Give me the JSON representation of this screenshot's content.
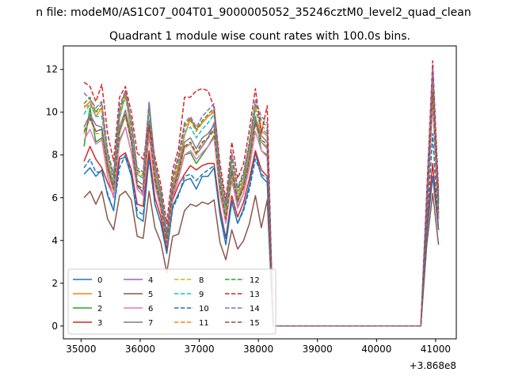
{
  "figure": {
    "suptitle": "n file: modeM0/AS1C07_004T01_9000005052_35246cztM0_level2_quad_clean",
    "title": "Quadrant 1 module wise count rates with 100.0s bins."
  },
  "chart_data": {
    "type": "line",
    "x_offset_label": "+3.868e8",
    "xlim": [
      34700,
      41350
    ],
    "ylim": [
      -0.6,
      13.1
    ],
    "xticks": [
      35000,
      36000,
      37000,
      38000,
      39000,
      40000,
      41000
    ],
    "yticks": [
      0,
      2,
      4,
      6,
      8,
      10,
      12
    ],
    "grid": false,
    "legend": {
      "placement": "lower-left",
      "columns": 4
    },
    "x": [
      35050,
      35150,
      35250,
      35350,
      35450,
      35550,
      35650,
      35750,
      35850,
      35950,
      36050,
      36150,
      36250,
      36350,
      36450,
      36550,
      36650,
      36750,
      36850,
      36950,
      37050,
      37150,
      37250,
      37350,
      37450,
      37550,
      37650,
      37750,
      37850,
      37950,
      38050,
      38150,
      38250,
      38350,
      38450,
      38550,
      38650,
      38750,
      38850,
      38950,
      39050,
      39150,
      39250,
      39350,
      39450,
      39550,
      39650,
      39750,
      39850,
      39950,
      40050,
      40150,
      40250,
      40350,
      40450,
      40550,
      40650,
      40750,
      40850,
      40950,
      41050
    ],
    "series": [
      {
        "name": "0",
        "color": "#1f77b4",
        "dash": "solid",
        "values": [
          7.1,
          7.4,
          7.0,
          7.3,
          6.1,
          5.4,
          7.8,
          7.9,
          7.0,
          5.1,
          4.9,
          7.9,
          5.7,
          4.8,
          3.4,
          5.6,
          6.2,
          6.8,
          6.9,
          6.4,
          7.0,
          7.0,
          7.4,
          5.2,
          3.8,
          5.8,
          4.8,
          5.5,
          6.6,
          8.1,
          7.0,
          6.7,
          0,
          0,
          0,
          0,
          0,
          0,
          0,
          0,
          0,
          0,
          0,
          0,
          0,
          0,
          0,
          0,
          0,
          0,
          0,
          0,
          0,
          0,
          0,
          0,
          0,
          0,
          4.3,
          7.0,
          4.5
        ]
      },
      {
        "name": "1",
        "color": "#ff7f0e",
        "dash": "solid",
        "values": [
          10.2,
          10.5,
          9.8,
          10.2,
          7.7,
          6.6,
          9.7,
          10.9,
          8.9,
          7.1,
          6.9,
          9.5,
          7.3,
          6.0,
          4.1,
          6.6,
          7.5,
          8.9,
          9.7,
          9.2,
          9.5,
          9.8,
          10.0,
          6.9,
          5.4,
          7.5,
          6.0,
          6.8,
          8.2,
          9.7,
          9.1,
          8.9,
          0,
          0,
          0,
          0,
          0,
          0,
          0,
          0,
          0,
          0,
          0,
          0,
          0,
          0,
          0,
          0,
          0,
          0,
          0,
          0,
          0,
          0,
          0,
          0,
          0,
          0,
          5.7,
          11.5,
          5.7
        ]
      },
      {
        "name": "2",
        "color": "#2ca02c",
        "dash": "solid",
        "values": [
          8.4,
          10.2,
          8.6,
          8.8,
          7.0,
          6.0,
          8.7,
          9.3,
          8.1,
          6.6,
          6.2,
          8.9,
          6.7,
          5.5,
          4.1,
          6.0,
          7.0,
          8.0,
          8.1,
          7.6,
          8.0,
          8.4,
          8.9,
          6.2,
          4.9,
          6.8,
          5.6,
          6.2,
          7.6,
          9.8,
          8.2,
          8.0,
          0,
          0,
          0,
          0,
          0,
          0,
          0,
          0,
          0,
          0,
          0,
          0,
          0,
          0,
          0,
          0,
          0,
          0,
          0,
          0,
          0,
          0,
          0,
          0,
          0,
          0,
          5.0,
          10.7,
          5.0
        ]
      },
      {
        "name": "3",
        "color": "#d62728",
        "dash": "solid",
        "values": [
          7.7,
          8.4,
          7.8,
          7.4,
          6.7,
          6.1,
          7.9,
          8.1,
          7.3,
          5.7,
          5.6,
          8.2,
          6.0,
          5.1,
          3.6,
          5.9,
          6.6,
          7.1,
          7.5,
          7.3,
          7.5,
          7.6,
          7.6,
          5.5,
          4.1,
          6.1,
          5.1,
          5.8,
          6.9,
          8.2,
          7.3,
          7.0,
          0,
          0,
          0,
          0,
          0,
          0,
          0,
          0,
          0,
          0,
          0,
          0,
          0,
          0,
          0,
          0,
          0,
          0,
          0,
          0,
          0,
          0,
          0,
          0,
          0,
          0,
          4.5,
          7.6,
          4.5
        ]
      },
      {
        "name": "4",
        "color": "#9467bd",
        "dash": "solid",
        "values": [
          9.0,
          9.8,
          9.1,
          9.2,
          7.3,
          6.3,
          9.1,
          9.9,
          8.6,
          6.5,
          6.3,
          9.6,
          6.9,
          5.6,
          3.9,
          6.1,
          7.2,
          8.4,
          8.5,
          8.0,
          8.4,
          8.8,
          9.5,
          6.5,
          5.0,
          7.2,
          5.8,
          6.5,
          7.8,
          9.7,
          8.6,
          8.3,
          0,
          0,
          0,
          0,
          0,
          0,
          0,
          0,
          0,
          0,
          0,
          0,
          0,
          0,
          0,
          0,
          0,
          0,
          0,
          0,
          0,
          0,
          0,
          0,
          0,
          0,
          5.2,
          11.0,
          5.2
        ]
      },
      {
        "name": "5",
        "color": "#8c564b",
        "dash": "solid",
        "values": [
          6.0,
          6.3,
          5.7,
          6.3,
          5.0,
          4.5,
          6.1,
          6.3,
          5.9,
          4.2,
          4.1,
          6.3,
          4.6,
          3.9,
          2.5,
          4.2,
          4.3,
          5.4,
          5.7,
          5.6,
          5.8,
          5.7,
          5.9,
          3.9,
          3.1,
          4.5,
          3.6,
          4.0,
          4.8,
          6.1,
          4.6,
          5.9,
          0,
          0,
          0,
          0,
          0,
          0,
          0,
          0,
          0,
          0,
          0,
          0,
          0,
          0,
          0,
          0,
          0,
          0,
          0,
          0,
          0,
          0,
          0,
          0,
          0,
          0,
          3.8,
          6.2,
          3.8
        ]
      },
      {
        "name": "6",
        "color": "#e377c2",
        "dash": "solid",
        "values": [
          8.7,
          9.2,
          8.5,
          8.7,
          7.0,
          6.0,
          8.6,
          9.3,
          8.1,
          6.4,
          6.1,
          9.0,
          6.6,
          5.4,
          3.8,
          6.0,
          6.9,
          8.0,
          8.2,
          7.8,
          8.1,
          8.4,
          8.8,
          6.2,
          4.8,
          6.9,
          5.5,
          6.2,
          7.4,
          9.1,
          8.2,
          7.9,
          0,
          0,
          0,
          0,
          0,
          0,
          0,
          0,
          0,
          0,
          0,
          0,
          0,
          0,
          0,
          0,
          0,
          0,
          0,
          0,
          0,
          0,
          0,
          0,
          0,
          0,
          5.0,
          10.4,
          5.0
        ]
      },
      {
        "name": "7",
        "color": "#7f7f7f",
        "dash": "solid",
        "values": [
          9.3,
          9.9,
          9.4,
          9.3,
          7.5,
          6.5,
          9.3,
          10.1,
          8.8,
          6.8,
          6.6,
          9.6,
          7.0,
          5.8,
          4.0,
          6.4,
          7.3,
          8.6,
          8.8,
          8.3,
          8.8,
          9.0,
          9.4,
          6.6,
          5.1,
          7.3,
          5.9,
          6.6,
          7.9,
          9.6,
          8.9,
          8.6,
          0,
          0,
          0,
          0,
          0,
          0,
          0,
          0,
          0,
          0,
          0,
          0,
          0,
          0,
          0,
          0,
          0,
          0,
          0,
          0,
          0,
          0,
          0,
          0,
          0,
          0,
          5.4,
          11.0,
          5.4
        ]
      },
      {
        "name": "8",
        "color": "#bcbd22",
        "dash": "dashed",
        "values": [
          9.0,
          9.7,
          9.0,
          9.0,
          7.3,
          6.3,
          9.0,
          9.8,
          8.6,
          6.6,
          6.4,
          9.3,
          6.8,
          5.6,
          3.9,
          6.2,
          7.1,
          8.3,
          8.5,
          8.0,
          8.5,
          8.8,
          9.1,
          6.4,
          5.0,
          7.1,
          5.8,
          6.4,
          7.7,
          9.4,
          8.6,
          8.4,
          0,
          0,
          0,
          0,
          0,
          0,
          0,
          0,
          0,
          0,
          0,
          0,
          0,
          0,
          0,
          0,
          0,
          0,
          0,
          0,
          0,
          0,
          0,
          0,
          0,
          0,
          5.2,
          10.8,
          5.2
        ]
      },
      {
        "name": "9",
        "color": "#17becf",
        "dash": "dashed",
        "values": [
          9.9,
          10.4,
          9.8,
          9.8,
          7.9,
          6.8,
          9.8,
          10.7,
          9.2,
          7.1,
          6.9,
          10.1,
          7.3,
          6.0,
          4.2,
          6.7,
          7.7,
          9.1,
          9.3,
          8.8,
          9.2,
          9.5,
          9.9,
          6.9,
          5.4,
          7.7,
          6.2,
          6.9,
          8.3,
          10.1,
          9.2,
          9.0,
          0,
          0,
          0,
          0,
          0,
          0,
          0,
          0,
          0,
          0,
          0,
          0,
          0,
          0,
          0,
          0,
          0,
          0,
          0,
          0,
          0,
          0,
          0,
          0,
          0,
          0,
          5.7,
          11.7,
          5.7
        ]
      },
      {
        "name": "10",
        "color": "#1f77b4",
        "dash": "dashed",
        "values": [
          7.4,
          7.8,
          7.2,
          7.2,
          6.2,
          5.4,
          7.4,
          8.0,
          7.1,
          5.4,
          5.2,
          7.8,
          5.7,
          4.8,
          3.4,
          5.5,
          6.1,
          7.0,
          7.1,
          6.8,
          7.1,
          7.3,
          7.5,
          5.3,
          4.1,
          5.9,
          4.8,
          5.4,
          6.4,
          7.8,
          7.1,
          6.9,
          0,
          0,
          0,
          0,
          0,
          0,
          0,
          0,
          0,
          0,
          0,
          0,
          0,
          0,
          0,
          0,
          0,
          0,
          0,
          0,
          0,
          0,
          0,
          0,
          0,
          0,
          4.4,
          9.0,
          4.4
        ]
      },
      {
        "name": "11",
        "color": "#ff7f0e",
        "dash": "dashed",
        "values": [
          10.3,
          10.3,
          10.0,
          10.2,
          8.0,
          7.0,
          10.0,
          10.8,
          9.4,
          7.2,
          7.0,
          10.3,
          7.4,
          6.1,
          4.3,
          6.8,
          7.8,
          9.3,
          9.6,
          9.1,
          9.5,
          9.8,
          10.1,
          7.1,
          5.5,
          7.9,
          6.3,
          7.0,
          8.4,
          10.2,
          9.4,
          9.1,
          0,
          0,
          0,
          0,
          0,
          0,
          0,
          0,
          0,
          0,
          0,
          0,
          0,
          0,
          0,
          0,
          0,
          0,
          0,
          0,
          0,
          0,
          0,
          0,
          0,
          0,
          5.8,
          11.8,
          5.8
        ]
      },
      {
        "name": "12",
        "color": "#2ca02c",
        "dash": "dashed",
        "values": [
          10.4,
          10.7,
          10.0,
          10.4,
          8.1,
          7.0,
          10.1,
          11.0,
          9.5,
          7.3,
          7.1,
          10.4,
          7.6,
          6.2,
          4.3,
          6.9,
          7.9,
          9.4,
          9.7,
          9.2,
          9.6,
          9.9,
          10.2,
          7.2,
          5.6,
          8.0,
          6.4,
          7.1,
          8.5,
          10.4,
          9.6,
          9.3,
          0,
          0,
          0,
          0,
          0,
          0,
          0,
          0,
          0,
          0,
          0,
          0,
          0,
          0,
          0,
          0,
          0,
          0,
          0,
          0,
          0,
          0,
          0,
          0,
          0,
          0,
          5.9,
          12.0,
          5.9
        ]
      },
      {
        "name": "13",
        "color": "#d62728",
        "dash": "dashed",
        "values": [
          11.4,
          11.2,
          10.5,
          11.3,
          9.0,
          7.7,
          10.7,
          11.2,
          10.0,
          8.1,
          7.8,
          9.4,
          7.9,
          6.6,
          4.8,
          7.3,
          8.3,
          10.7,
          10.7,
          11.0,
          11.1,
          11.0,
          10.2,
          7.6,
          5.9,
          8.6,
          6.9,
          7.6,
          9.2,
          11.1,
          9.0,
          10.3,
          0,
          0,
          0,
          0,
          0,
          0,
          0,
          0,
          0,
          0,
          0,
          0,
          0,
          0,
          0,
          0,
          0,
          0,
          0,
          0,
          0,
          0,
          0,
          0,
          0,
          0,
          6.3,
          12.4,
          6.3
        ]
      },
      {
        "name": "14",
        "color": "#9467bd",
        "dash": "dashed",
        "values": [
          10.9,
          10.6,
          10.2,
          10.5,
          8.2,
          7.1,
          10.3,
          11.0,
          9.6,
          7.4,
          7.2,
          10.5,
          7.6,
          6.3,
          4.4,
          7.0,
          8.0,
          9.5,
          9.8,
          9.3,
          9.8,
          10.1,
          10.4,
          7.3,
          5.7,
          8.1,
          6.5,
          7.2,
          8.7,
          10.6,
          9.8,
          9.5,
          0,
          0,
          0,
          0,
          0,
          0,
          0,
          0,
          0,
          0,
          0,
          0,
          0,
          0,
          0,
          0,
          0,
          0,
          0,
          0,
          0,
          0,
          0,
          0,
          0,
          0,
          6.0,
          12.1,
          6.0
        ]
      },
      {
        "name": "15",
        "color": "#8c564b",
        "dash": "dashed",
        "values": [
          9.1,
          9.7,
          9.1,
          9.2,
          7.4,
          6.4,
          9.1,
          9.9,
          8.6,
          6.6,
          6.4,
          9.4,
          6.8,
          5.6,
          3.9,
          6.3,
          7.2,
          8.4,
          8.6,
          8.1,
          8.6,
          8.8,
          9.2,
          6.5,
          5.0,
          7.2,
          5.8,
          6.5,
          7.8,
          9.5,
          8.7,
          8.5,
          0,
          0,
          0,
          0,
          0,
          0,
          0,
          0,
          0,
          0,
          0,
          0,
          0,
          0,
          0,
          0,
          0,
          0,
          0,
          0,
          0,
          0,
          0,
          0,
          0,
          0,
          5.3,
          10.9,
          5.3
        ]
      }
    ]
  }
}
